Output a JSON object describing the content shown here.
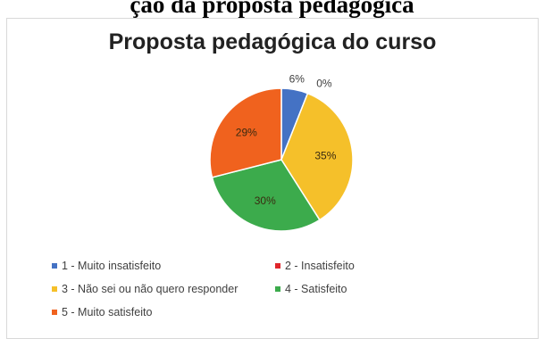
{
  "page": {
    "heading": "ção da proposta pedagógica"
  },
  "chart_data": {
    "type": "pie",
    "title": "Proposta pedagógica do curso",
    "categories": [
      "1 - Muito insatisfeito",
      "2 - Insatisfeito",
      "3 - Não sei ou não quero responder",
      "4 - Satisfeito",
      "5 - Muito satisfeito"
    ],
    "values": [
      6,
      0,
      35,
      30,
      29
    ],
    "labels": [
      "6%",
      "0%",
      "35%",
      "30%",
      "29%"
    ],
    "colors": [
      "#4472c4",
      "#e0262b",
      "#f5c02a",
      "#3cab4c",
      "#f0621e"
    ],
    "legend_position": "bottom"
  }
}
